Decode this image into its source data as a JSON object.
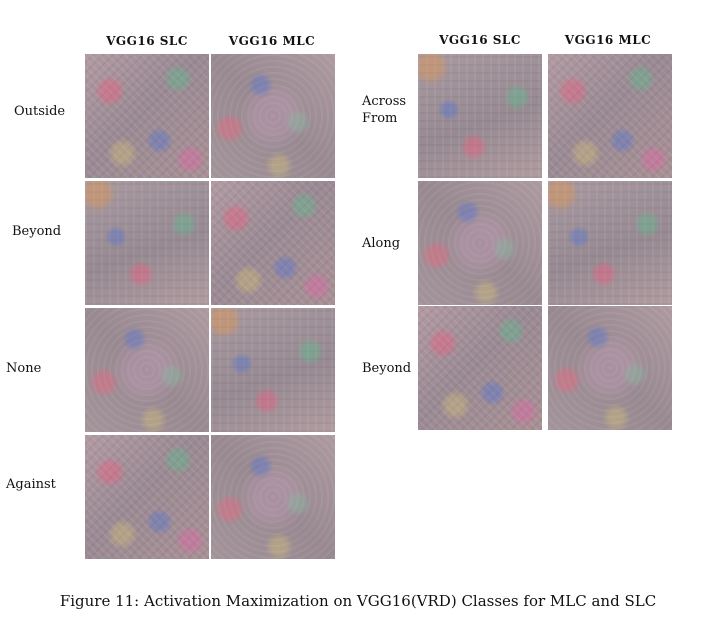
{
  "figure": {
    "left_panel": {
      "headers": [
        "VGG16 SLC",
        "VGG16 MLC"
      ],
      "rows": [
        {
          "label": "Outside"
        },
        {
          "label": "Beyond"
        },
        {
          "label": "None"
        },
        {
          "label": "Against"
        }
      ]
    },
    "right_panel": {
      "headers": [
        "VGG16 SLC",
        "VGG16 MLC"
      ],
      "rows": [
        {
          "label": "Across\nFrom"
        },
        {
          "label": "Along"
        },
        {
          "label": "Beyond"
        }
      ]
    },
    "caption": "Figure 11: Activation Maximization on VGG16(VRD) Classes for MLC and SLC"
  }
}
